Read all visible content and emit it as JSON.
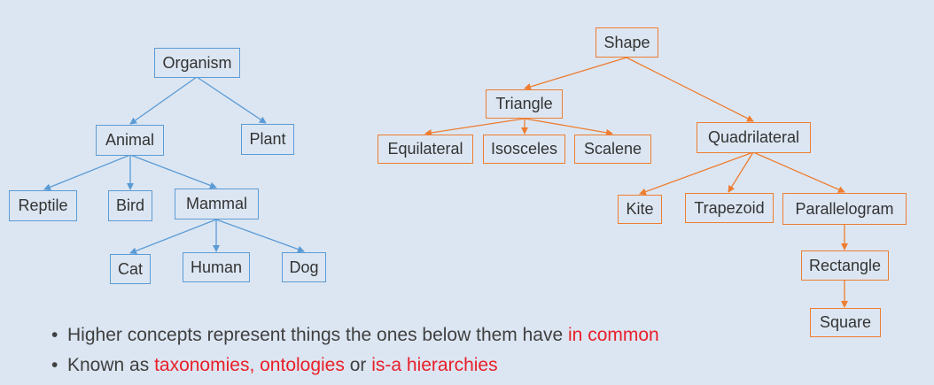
{
  "colors": {
    "blue_tree": "#5b9bd5",
    "orange_tree": "#ed7d31",
    "highlight": "#e8202a",
    "background": "#dce6f2"
  },
  "bio_tree": {
    "organism": "Organism",
    "animal": "Animal",
    "plant": "Plant",
    "reptile": "Reptile",
    "bird": "Bird",
    "mammal": "Mammal",
    "cat": "Cat",
    "human": "Human",
    "dog": "Dog"
  },
  "shape_tree": {
    "shape": "Shape",
    "triangle": "Triangle",
    "equilateral": "Equilateral",
    "isosceles": "Isosceles",
    "scalene": "Scalene",
    "quadrilateral": "Quadrilateral",
    "kite": "Kite",
    "trapezoid": "Trapezoid",
    "parallelogram": "Parallelogram",
    "rectangle": "Rectangle",
    "square": "Square"
  },
  "bullets": [
    {
      "text": "Higher concepts represent things the ones below them have ",
      "highlight": "in common",
      "tail": ""
    },
    {
      "text": "Known as ",
      "highlight": "taxonomies, ontologies",
      "mid": " or ",
      "highlight2": "is-a hierarchies"
    }
  ]
}
